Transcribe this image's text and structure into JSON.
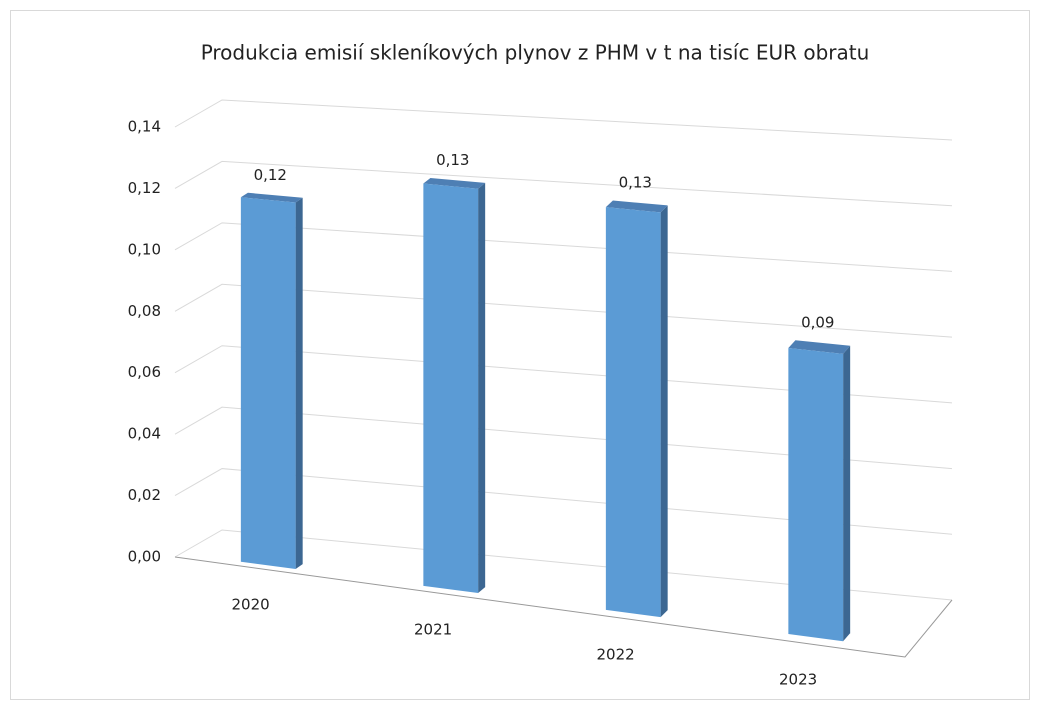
{
  "chart_data": {
    "type": "bar3d",
    "title": "Produkcia emisií skleníkových plynov z PHM v t na tisíc EUR obratu",
    "categories": [
      "2020",
      "2021",
      "2022",
      "2023"
    ],
    "values": [
      0.118,
      0.128,
      0.126,
      0.088
    ],
    "value_labels": [
      "0,12",
      "0,13",
      "0,13",
      "0,09"
    ],
    "color": "#5b9bd5",
    "ylim": [
      0,
      0.14
    ],
    "yticks": [
      {
        "value": 0,
        "label": "0,00"
      },
      {
        "value": 0.02,
        "label": "0,02"
      },
      {
        "value": 0.04,
        "label": "0,04"
      },
      {
        "value": 0.06,
        "label": "0,06"
      },
      {
        "value": 0.08,
        "label": "0,08"
      },
      {
        "value": 0.1,
        "label": "0,10"
      },
      {
        "value": 0.12,
        "label": "0,12"
      },
      {
        "value": 0.14,
        "label": "0,14"
      }
    ],
    "grid": true
  }
}
